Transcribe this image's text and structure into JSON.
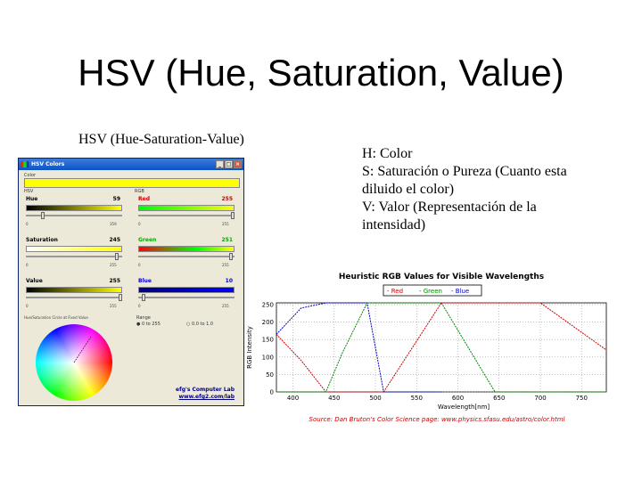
{
  "slide": {
    "title": "HSV (Hue, Saturation, Value)",
    "subtitle": "HSV (Hue-Saturation-Value)",
    "description": [
      "H: Color",
      "S: Saturación o Pureza (Cuanto esta",
      "diluido el color)",
      "V: Valor (Representación de la",
      "intensidad)"
    ]
  },
  "hsv_window": {
    "title": "HSV Colors",
    "color_label": "Color",
    "hsv_group": "HSV",
    "rgb_group": "RGB",
    "current_color": "#ffff08",
    "hue": {
      "label": "Hue",
      "value": "59",
      "fraction": 0.163
    },
    "saturation": {
      "label": "Saturation",
      "value": "245",
      "fraction": 0.96
    },
    "value": {
      "label": "Value",
      "value": "255",
      "fraction": 1.0
    },
    "red": {
      "label": "Red",
      "value": "255",
      "fraction": 1.0
    },
    "green": {
      "label": "Green",
      "value": "251",
      "fraction": 0.984
    },
    "blue": {
      "label": "Blue",
      "value": "10",
      "fraction": 0.04
    },
    "track_min": "0",
    "track_max_hsv": "359",
    "track_max_rgb": "255",
    "wheel_label": "Hue/Saturation Circle at Fixed Value",
    "range_label": "Range",
    "range_option_1": "0 to 255",
    "range_option_2": "0.0 to 1.0",
    "lab_name": "efg's Computer Lab",
    "lab_url": "www.efg2.com/lab",
    "colors": {
      "hue_bar": [
        "#000000",
        "#808000",
        "#ffff00"
      ],
      "red_bar": [
        "#fbfb0a",
        "#000000"
      ],
      "green_bar": [
        "#000000",
        "#00ff00"
      ],
      "blue_bar": [
        "#000000",
        "#0000ff"
      ]
    }
  },
  "chart_data": {
    "type": "line",
    "title": "Heuristic RGB Values for Visible Wavelengths",
    "xlabel": "Wavelength[nm]",
    "ylabel": "RGB Intensity",
    "xlim": [
      380,
      780
    ],
    "ylim": [
      0,
      255
    ],
    "x_ticks": [
      "400",
      "450",
      "500",
      "550",
      "600",
      "650",
      "700",
      "750"
    ],
    "y_ticks": [
      "0",
      "50",
      "100",
      "150",
      "200",
      "250"
    ],
    "legend": [
      "Red",
      "Green",
      "Blue"
    ],
    "legend_placement": "top-center",
    "source": "Source: Dan Bruton's Color Science page: www.physics.sfasu.edu/astro/color.html",
    "series": [
      {
        "name": "Red",
        "color": "#cc0000",
        "x": [
          380,
          410,
          440,
          460,
          490,
          510,
          580,
          645,
          700,
          780
        ],
        "y": [
          165,
          90,
          0,
          0,
          0,
          0,
          255,
          255,
          255,
          120
        ]
      },
      {
        "name": "Green",
        "color": "#008800",
        "x": [
          380,
          440,
          460,
          490,
          510,
          580,
          645,
          700,
          780
        ],
        "y": [
          0,
          0,
          112,
          255,
          255,
          255,
          0,
          0,
          0
        ]
      },
      {
        "name": "Blue",
        "color": "#0000cc",
        "x": [
          380,
          410,
          440,
          490,
          510,
          580
        ],
        "y": [
          165,
          240,
          255,
          255,
          0,
          0
        ]
      }
    ]
  }
}
